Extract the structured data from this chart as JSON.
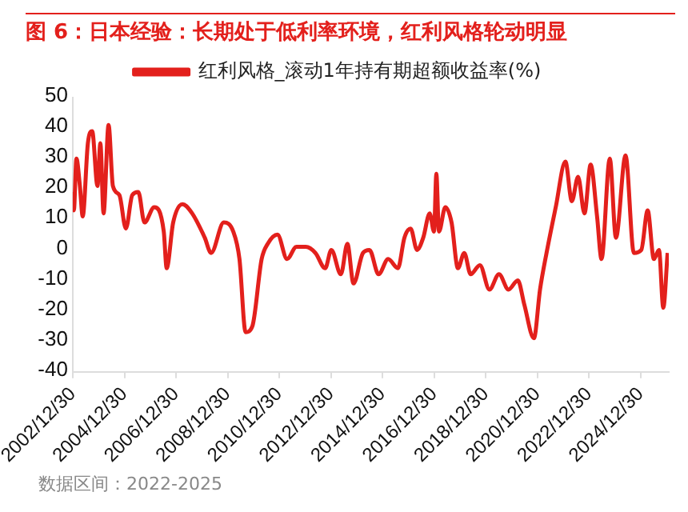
{
  "chart_data": {
    "type": "line",
    "title": "图 6：日本经验：长期处于低利率环境，红利风格轮动明显",
    "annotations": [
      "数据区间：2022-2025"
    ],
    "x": [
      "2003-01-05",
      "2003-01-15",
      "2003-02-20",
      "2003-04-10",
      "2003-05-20",
      "2003-08-01",
      "2003-10-01",
      "2003-12-15",
      "2004-01-25",
      "2004-03-10",
      "2004-05-20",
      "2004-07-20",
      "2004-10-20",
      "2005-01-20",
      "2005-04-20",
      "2005-07-15",
      "2005-10-10",
      "2006-02-25",
      "2006-07-10",
      "2006-08-20",
      "2006-11-20",
      "2007-04-01",
      "2007-08-15",
      "2008-02-10",
      "2008-05-10",
      "2008-11-05",
      "2009-03-20",
      "2009-06-15",
      "2009-09-10",
      "2009-12-15",
      "2010-04-25",
      "2010-07-20",
      "2010-12-05",
      "2011-04-20",
      "2011-08-30",
      "2012-01-10",
      "2012-05-25",
      "2012-10-10",
      "2013-01-05",
      "2013-05-20",
      "2013-08-20",
      "2013-11-15",
      "2014-03-28",
      "2014-06-28",
      "2014-11-05",
      "2015-03-20",
      "2015-08-05",
      "2015-11-05",
      "2016-02-01",
      "2016-05-01",
      "2016-07-28",
      "2016-10-28",
      "2016-12-28",
      "2017-01-30",
      "2017-03-08",
      "2017-06-05",
      "2017-09-02",
      "2017-12-01",
      "2018-03-01",
      "2018-05-30",
      "2018-10-08",
      "2019-02-20",
      "2019-07-05",
      "2019-11-17",
      "2020-03-28",
      "2020-06-28",
      "2020-11-10",
      "2021-02-05",
      "2021-05-08",
      "2021-09-15",
      "2022-01-30",
      "2022-05-01",
      "2022-07-28",
      "2022-10-27",
      "2023-01-22",
      "2023-04-23",
      "2023-06-25",
      "2023-10-20",
      "2024-01-15",
      "2024-05-30",
      "2024-09-25",
      "2025-01-08",
      "2025-04-08",
      "2025-07-05",
      "2025-09-15",
      "2025-11-15",
      "2026-01-15"
    ],
    "series": [
      {
        "name": "红利风格_滚动1年持有期超额收益率(%)",
        "color": "#e3201c",
        "values": [
          19,
          13,
          30,
          21,
          11,
          35,
          39,
          21,
          35,
          12,
          41,
          21,
          18,
          7,
          18,
          19,
          9,
          14,
          6,
          -6,
          9,
          15,
          12,
          4,
          -1,
          9,
          6,
          -3,
          -27,
          -25,
          -3,
          2,
          5,
          -3,
          1,
          1,
          -1,
          -6,
          0,
          -8,
          2,
          -11,
          -1,
          0,
          -8,
          -3,
          -6,
          4,
          7,
          0,
          4,
          12,
          6,
          25,
          6,
          14,
          9,
          -6,
          -1,
          -8,
          -5,
          -13,
          -8,
          -13,
          -10,
          -18,
          -29,
          -13,
          -1,
          14,
          29,
          16,
          24,
          12,
          28,
          11,
          -3,
          30,
          4,
          31,
          -1,
          0,
          13,
          -3,
          0,
          -19,
          -1
        ]
      }
    ],
    "xlim": [
      "2002-12-30",
      "2026-02-01"
    ],
    "xticks": [
      {
        "value": "2002-12-30",
        "label": "2002/12/30"
      },
      {
        "value": "2004-12-30",
        "label": "2004/12/30"
      },
      {
        "value": "2006-12-30",
        "label": "2006/12/30"
      },
      {
        "value": "2008-12-30",
        "label": "2008/12/30"
      },
      {
        "value": "2010-12-30",
        "label": "2010/12/30"
      },
      {
        "value": "2012-12-30",
        "label": "2012/12/30"
      },
      {
        "value": "2014-12-30",
        "label": "2014/12/30"
      },
      {
        "value": "2016-12-30",
        "label": "2016/12/30"
      },
      {
        "value": "2018-12-30",
        "label": "2018/12/30"
      },
      {
        "value": "2020-12-30",
        "label": "2020/12/30"
      },
      {
        "value": "2022-12-30",
        "label": "2022/12/30"
      },
      {
        "value": "2024-12-30",
        "label": "2024/12/30"
      }
    ],
    "ylim": [
      -40,
      50
    ],
    "yticks": [
      -40,
      -30,
      -20,
      -10,
      0,
      10,
      20,
      30,
      40,
      50
    ],
    "grid": false,
    "legend": "top",
    "marker": "none",
    "line_style": "solid"
  }
}
